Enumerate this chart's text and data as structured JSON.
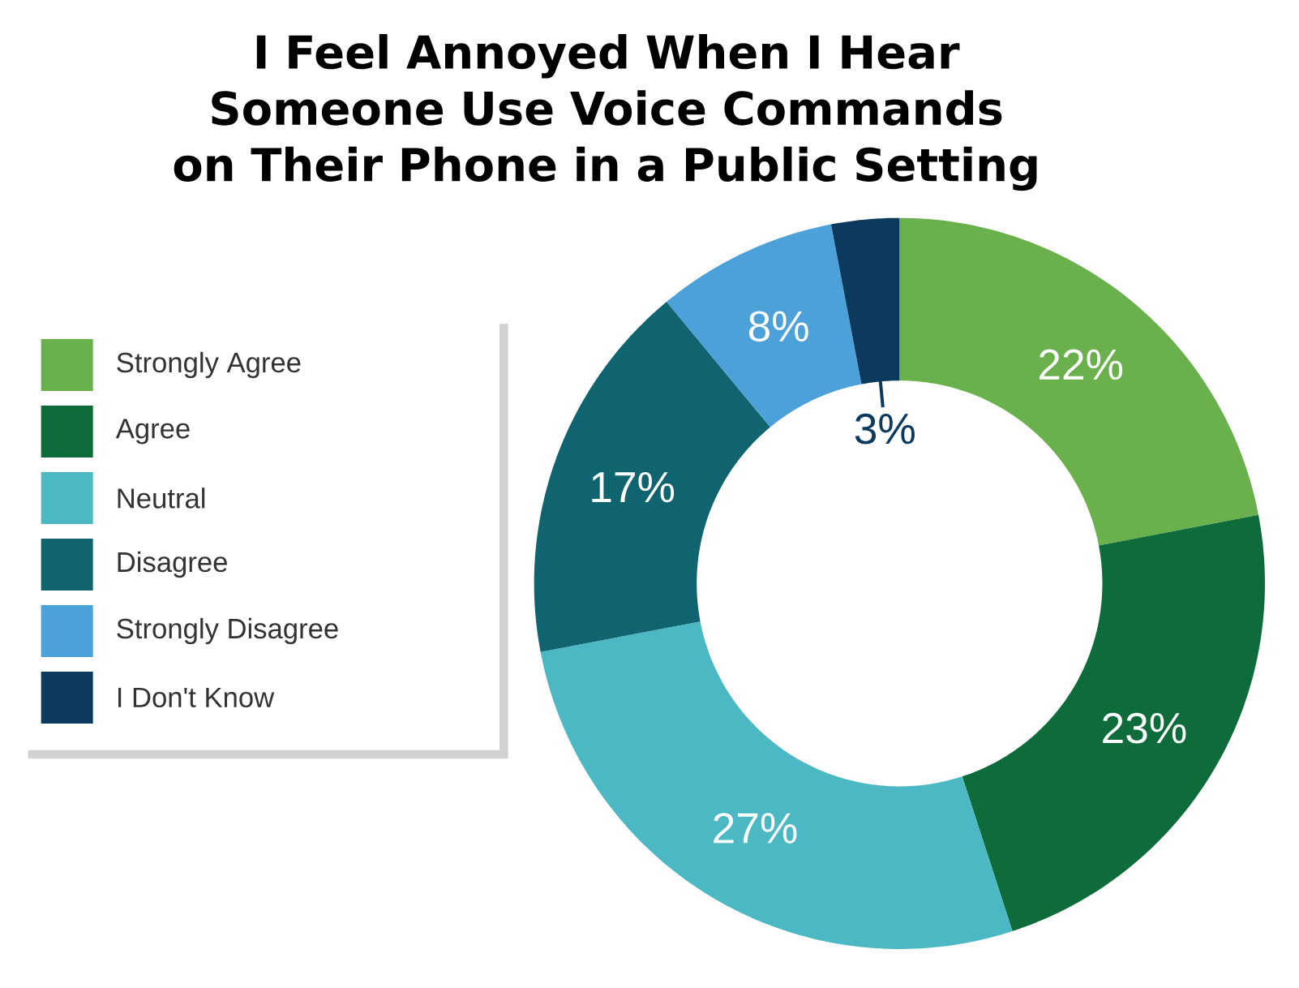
{
  "chart_data": {
    "type": "donut",
    "title": "I Feel Annoyed When I Hear Someone Use Voice Commands on Their Phone in a Public Setting",
    "categories": [
      "Strongly Agree",
      "Agree",
      "Neutral",
      "Disagree",
      "Strongly Disagree",
      "I Don't Know"
    ],
    "values": [
      22,
      23,
      27,
      17,
      8,
      3
    ],
    "value_labels": [
      "22%",
      "23%",
      "27%",
      "17%",
      "8%",
      "3%"
    ],
    "colors": [
      "#6ab04c",
      "#0e6b3a",
      "#4bb8c4",
      "#0f6470",
      "#4ca1d8",
      "#0b3a5e"
    ],
    "legend": "left"
  }
}
